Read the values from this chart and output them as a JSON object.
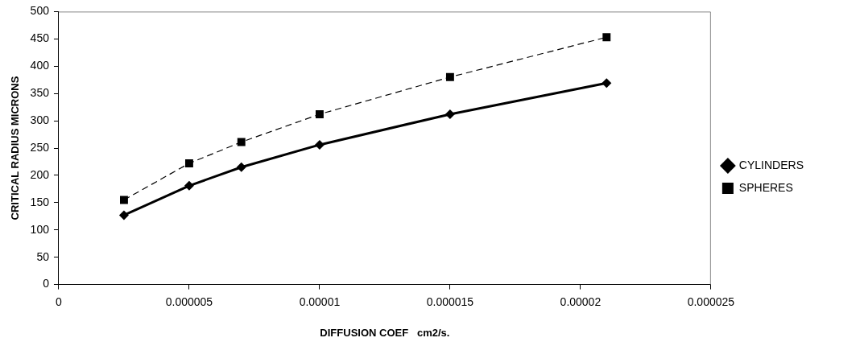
{
  "chart_data": {
    "type": "line",
    "xlabel": "DIFFUSION COEF   cm2/s.",
    "ylabel": "CRITICAL RADIUS MICRONS",
    "x": [
      2.5e-06,
      5e-06,
      7e-06,
      1e-05,
      1.5e-05,
      2.1e-05
    ],
    "series": [
      {
        "name": "CYLINDERS",
        "color": "#000000",
        "marker": "diamond",
        "line_style": "solid",
        "values": [
          127,
          181,
          215,
          256,
          312,
          369
        ]
      },
      {
        "name": "SPHERES",
        "color": "#000000",
        "marker": "square",
        "line_style": "dashed",
        "values": [
          155,
          222,
          261,
          312,
          380,
          453
        ]
      }
    ],
    "xlim": [
      0,
      2.5e-05
    ],
    "xticks": [
      0,
      {
        "value": 5e-06,
        "label": "0.000005"
      },
      {
        "value": 1e-05,
        "label": "0.00001"
      },
      {
        "value": 1.5e-05,
        "label": "0.000015"
      },
      {
        "value": 2e-05,
        "label": "0.00002"
      },
      {
        "value": 2.5e-05,
        "label": "0.000025"
      }
    ],
    "ylim": [
      0,
      500
    ],
    "yticks": [
      0,
      50,
      100,
      150,
      200,
      250,
      300,
      350,
      400,
      450,
      500
    ],
    "grid": false,
    "legend": "right"
  }
}
